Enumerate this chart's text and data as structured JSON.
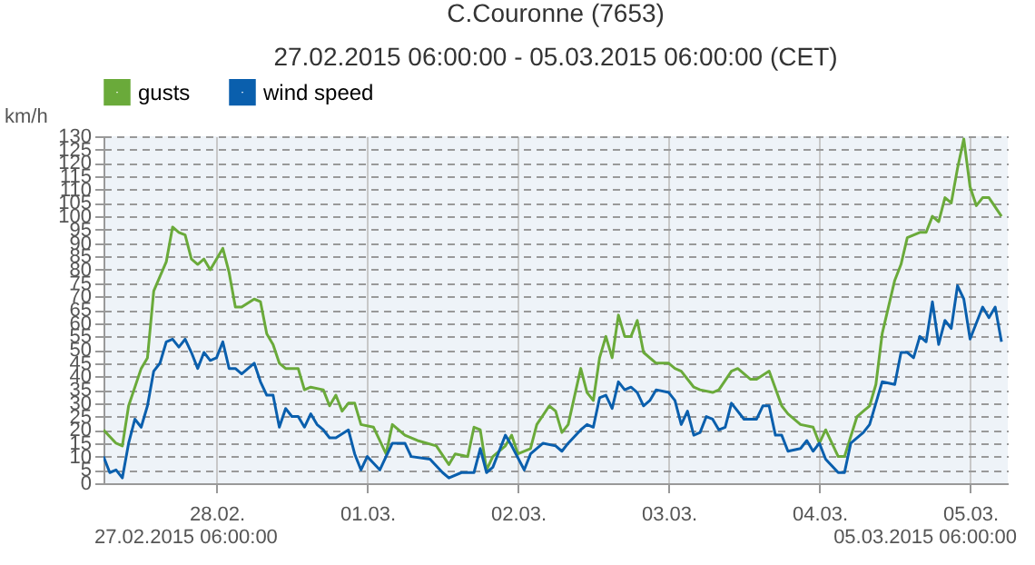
{
  "chart_data": {
    "type": "line",
    "title": "C.Couronne (7653)",
    "subtitle": "27.02.2015 06:00:00 - 05.03.2015 06:00:00 (CET)",
    "ylabel": "km/h",
    "legend": "top",
    "grid": true,
    "marker": "none",
    "line_style": "solid",
    "ylim": [
      0,
      130
    ],
    "yticks": [
      0,
      5,
      10,
      15,
      20,
      25,
      30,
      35,
      40,
      45,
      50,
      55,
      60,
      65,
      70,
      75,
      80,
      85,
      90,
      95,
      100,
      105,
      110,
      115,
      120,
      125,
      130
    ],
    "xlim": [
      "2015-02-27T06:00",
      "2015-03-05T06:00"
    ],
    "xticks": [
      {
        "value": "2015-02-28T00:00",
        "label": "28.02."
      },
      {
        "value": "2015-03-01T00:00",
        "label": "01.03."
      },
      {
        "value": "2015-03-02T00:00",
        "label": "02.03."
      },
      {
        "value": "2015-03-03T00:00",
        "label": "03.03."
      },
      {
        "value": "2015-03-04T00:00",
        "label": "04.03."
      },
      {
        "value": "2015-03-05T00:00",
        "label": "05.03."
      }
    ],
    "annotations": [
      "27.02.2015 06:00:00",
      "05.03.2015 06:00:00"
    ],
    "series": [
      {
        "name": "gusts",
        "color": "#6aaa3a",
        "x": [
          "2015-02-27T06:00",
          "2015-02-27T08:00",
          "2015-02-27T09:00",
          "2015-02-27T10:00",
          "2015-02-27T12:00",
          "2015-02-27T13:00",
          "2015-02-27T14:00",
          "2015-02-27T16:00",
          "2015-02-27T17:00",
          "2015-02-27T18:00",
          "2015-02-27T19:00",
          "2015-02-27T20:00",
          "2015-02-27T21:00",
          "2015-02-27T22:00",
          "2015-02-27T23:00",
          "2015-02-28T01:00",
          "2015-02-28T02:00",
          "2015-02-28T03:00",
          "2015-02-28T04:00",
          "2015-02-28T06:00",
          "2015-02-28T07:00",
          "2015-02-28T08:00",
          "2015-02-28T09:00",
          "2015-02-28T10:00",
          "2015-02-28T11:00",
          "2015-02-28T13:00",
          "2015-02-28T14:00",
          "2015-02-28T15:00",
          "2015-02-28T17:00",
          "2015-02-28T18:00",
          "2015-02-28T19:00",
          "2015-02-28T20:00",
          "2015-02-28T21:00",
          "2015-02-28T22:00",
          "2015-02-28T23:00",
          "2015-03-01T01:00",
          "2015-03-01T03:00",
          "2015-03-01T04:00",
          "2015-03-01T06:00",
          "2015-03-01T08:00",
          "2015-03-01T11:00",
          "2015-03-01T13:00",
          "2015-03-01T14:00",
          "2015-03-01T16:00",
          "2015-03-01T17:00",
          "2015-03-01T18:00",
          "2015-03-01T19:00",
          "2015-03-01T20:00",
          "2015-03-01T22:00",
          "2015-03-01T23:00",
          "2015-03-02T00:00",
          "2015-03-02T02:00",
          "2015-03-02T03:00",
          "2015-03-02T05:00",
          "2015-03-02T06:00",
          "2015-03-02T07:00",
          "2015-03-02T08:00",
          "2015-03-02T10:00",
          "2015-03-02T11:00",
          "2015-03-02T12:00",
          "2015-03-02T13:00",
          "2015-03-02T14:00",
          "2015-03-02T15:00",
          "2015-03-02T16:00",
          "2015-03-02T17:00",
          "2015-03-02T18:00",
          "2015-03-02T19:00",
          "2015-03-02T20:00",
          "2015-03-02T22:00",
          "2015-03-03T00:00",
          "2015-03-03T01:00",
          "2015-03-03T02:00",
          "2015-03-03T04:00",
          "2015-03-03T05:00",
          "2015-03-03T07:00",
          "2015-03-03T08:00",
          "2015-03-03T10:00",
          "2015-03-03T11:00",
          "2015-03-03T13:00",
          "2015-03-03T14:00",
          "2015-03-03T16:00",
          "2015-03-03T18:00",
          "2015-03-03T19:00",
          "2015-03-03T21:00",
          "2015-03-03T23:00",
          "2015-03-04T00:00",
          "2015-03-04T01:00",
          "2015-03-04T03:00",
          "2015-03-04T04:00",
          "2015-03-04T06:00",
          "2015-03-04T07:00",
          "2015-03-04T08:00",
          "2015-03-04T09:00",
          "2015-03-04T10:00",
          "2015-03-04T12:00",
          "2015-03-04T13:00",
          "2015-03-04T14:00",
          "2015-03-04T16:00",
          "2015-03-04T17:00",
          "2015-03-04T18:00",
          "2015-03-04T19:00",
          "2015-03-04T20:00",
          "2015-03-04T21:00",
          "2015-03-04T22:00",
          "2015-03-04T23:00",
          "2015-03-05T00:00",
          "2015-03-05T01:00",
          "2015-03-05T02:00",
          "2015-03-05T03:00",
          "2015-03-05T05:00"
        ],
        "values": [
          20,
          15,
          14,
          29,
          43,
          47,
          72,
          83,
          96,
          94,
          93,
          84,
          82,
          84,
          80,
          88,
          79,
          66,
          66,
          69,
          68,
          56,
          52,
          45,
          43,
          43,
          35,
          36,
          35,
          29,
          33,
          27,
          30,
          30,
          22,
          21,
          11,
          22,
          18,
          16,
          14,
          7,
          11,
          10,
          21,
          20,
          5,
          10,
          14,
          18,
          11,
          13,
          22,
          29,
          27,
          19,
          22,
          43,
          34,
          31,
          47,
          55,
          47,
          63,
          55,
          55,
          61,
          49,
          45,
          45,
          43,
          42,
          36,
          35,
          34,
          35,
          42,
          43,
          39,
          39,
          42,
          29,
          26,
          22,
          21,
          15,
          20,
          10,
          10,
          25,
          27,
          29,
          37,
          56,
          76,
          82,
          92,
          94,
          94,
          100,
          98,
          107,
          105,
          118,
          129,
          111,
          104,
          107,
          107,
          100
        ]
      },
      {
        "name": "wind speed",
        "color": "#0a5fad",
        "x": [
          "2015-02-27T06:00",
          "2015-02-27T07:00",
          "2015-02-27T08:00",
          "2015-02-27T09:00",
          "2015-02-27T10:00",
          "2015-02-27T11:00",
          "2015-02-27T12:00",
          "2015-02-27T13:00",
          "2015-02-27T14:00",
          "2015-02-27T15:00",
          "2015-02-27T16:00",
          "2015-02-27T17:00",
          "2015-02-27T18:00",
          "2015-02-27T19:00",
          "2015-02-27T20:00",
          "2015-02-27T21:00",
          "2015-02-27T22:00",
          "2015-02-27T23:00",
          "2015-02-28T00:00",
          "2015-02-28T01:00",
          "2015-02-28T02:00",
          "2015-02-28T03:00",
          "2015-02-28T04:00",
          "2015-02-28T06:00",
          "2015-02-28T07:00",
          "2015-02-28T08:00",
          "2015-02-28T09:00",
          "2015-02-28T10:00",
          "2015-02-28T11:00",
          "2015-02-28T12:00",
          "2015-02-28T13:00",
          "2015-02-28T14:00",
          "2015-02-28T15:00",
          "2015-02-28T16:00",
          "2015-02-28T17:00",
          "2015-02-28T18:00",
          "2015-02-28T19:00",
          "2015-02-28T21:00",
          "2015-02-28T22:00",
          "2015-02-28T23:00",
          "2015-03-01T00:00",
          "2015-03-01T02:00",
          "2015-03-01T03:00",
          "2015-03-01T04:00",
          "2015-03-01T06:00",
          "2015-03-01T07:00",
          "2015-03-01T10:00",
          "2015-03-01T12:00",
          "2015-03-01T13:00",
          "2015-03-01T15:00",
          "2015-03-01T17:00",
          "2015-03-01T18:00",
          "2015-03-01T19:00",
          "2015-03-01T20:00",
          "2015-03-01T22:00",
          "2015-03-01T23:00",
          "2015-03-02T01:00",
          "2015-03-02T02:00",
          "2015-03-02T04:00",
          "2015-03-02T06:00",
          "2015-03-02T07:00",
          "2015-03-02T08:00",
          "2015-03-02T10:00",
          "2015-03-02T11:00",
          "2015-03-02T12:00",
          "2015-03-02T13:00",
          "2015-03-02T14:00",
          "2015-03-02T15:00",
          "2015-03-02T16:00",
          "2015-03-02T17:00",
          "2015-03-02T18:00",
          "2015-03-02T19:00",
          "2015-03-02T20:00",
          "2015-03-02T21:00",
          "2015-03-02T22:00",
          "2015-03-03T00:00",
          "2015-03-03T01:00",
          "2015-03-03T02:00",
          "2015-03-03T03:00",
          "2015-03-03T04:00",
          "2015-03-03T05:00",
          "2015-03-03T06:00",
          "2015-03-03T07:00",
          "2015-03-03T08:00",
          "2015-03-03T09:00",
          "2015-03-03T10:00",
          "2015-03-03T12:00",
          "2015-03-03T14:00",
          "2015-03-03T15:00",
          "2015-03-03T16:00",
          "2015-03-03T17:00",
          "2015-03-03T18:00",
          "2015-03-03T19:00",
          "2015-03-03T21:00",
          "2015-03-03T22:00",
          "2015-03-03T23:00",
          "2015-03-04T00:00",
          "2015-03-04T01:00",
          "2015-03-04T03:00",
          "2015-03-04T04:00",
          "2015-03-04T05:00",
          "2015-03-04T07:00",
          "2015-03-04T08:00",
          "2015-03-04T10:00",
          "2015-03-04T12:00",
          "2015-03-04T13:00",
          "2015-03-04T14:00",
          "2015-03-04T15:00",
          "2015-03-04T16:00",
          "2015-03-04T17:00",
          "2015-03-04T18:00",
          "2015-03-04T19:00",
          "2015-03-04T20:00",
          "2015-03-04T21:00",
          "2015-03-04T22:00",
          "2015-03-04T23:00",
          "2015-03-05T00:00",
          "2015-03-05T02:00",
          "2015-03-05T03:00",
          "2015-03-05T04:00",
          "2015-03-05T05:00"
        ],
        "values": [
          10,
          4,
          5,
          2,
          15,
          24,
          21,
          29,
          42,
          45,
          53,
          54,
          51,
          54,
          49,
          43,
          49,
          46,
          47,
          53,
          43,
          43,
          41,
          45,
          38,
          33,
          33,
          21,
          28,
          25,
          25,
          21,
          26,
          22,
          20,
          17,
          17,
          20,
          11,
          5,
          10,
          5,
          10,
          15,
          15,
          10,
          9,
          4,
          2,
          4,
          4,
          13,
          4,
          6,
          18,
          14,
          5,
          11,
          15,
          14,
          12,
          15,
          20,
          22,
          21,
          32,
          33,
          28,
          38,
          35,
          36,
          34,
          29,
          31,
          35,
          34,
          31,
          22,
          27,
          18,
          19,
          25,
          24,
          20,
          21,
          30,
          24,
          24,
          29,
          29,
          18,
          18,
          12,
          13,
          16,
          12,
          15,
          9,
          4,
          4,
          15,
          19,
          22,
          38,
          37,
          49,
          49,
          47,
          55,
          53,
          68,
          52,
          61,
          58,
          74,
          69,
          54,
          66,
          62,
          66,
          53
        ]
      }
    ]
  }
}
